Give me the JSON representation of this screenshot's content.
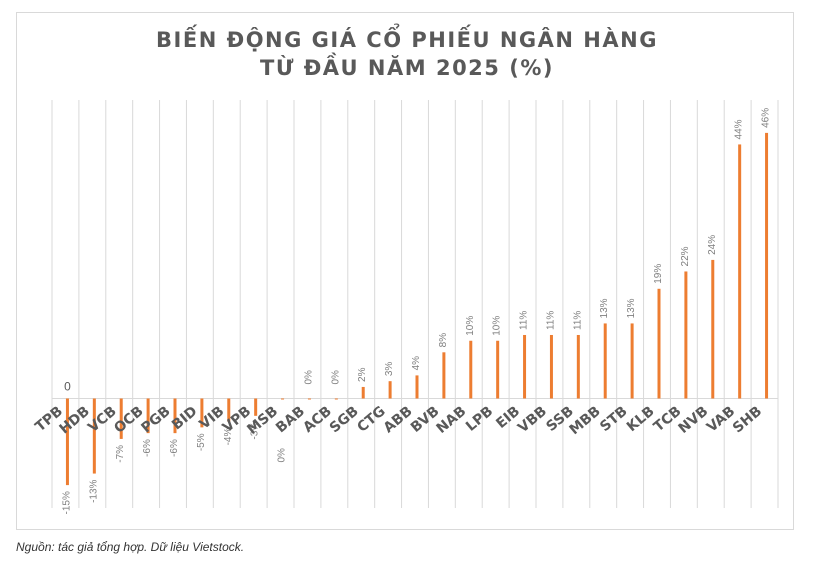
{
  "chart_data": {
    "type": "bar",
    "title_line1": "BIẾN ĐỘNG GIÁ CỔ PHIẾU NGÂN HÀNG",
    "title_line2": "TỪ ĐẦU NĂM 2025 (%)",
    "categories": [
      "TPB",
      "HDB",
      "VCB",
      "OCB",
      "PGB",
      "BID",
      "VIB",
      "VPB",
      "MSB",
      "BAB",
      "ACB",
      "SGB",
      "CTG",
      "ABB",
      "BVB",
      "NAB",
      "LPB",
      "EIB",
      "VBB",
      "SSB",
      "MBB",
      "STB",
      "KLB",
      "TCB",
      "NVB",
      "VAB",
      "SHB"
    ],
    "values": [
      -15,
      -13,
      -7,
      -6,
      -6,
      -5,
      -4,
      -3,
      0,
      0,
      0,
      2,
      3,
      4,
      8,
      10,
      10,
      11,
      11,
      11,
      13,
      13,
      19,
      22,
      24,
      44,
      46
    ],
    "data_labels": [
      "-15%",
      "-13%",
      "-7%",
      "-6%",
      "-6%",
      "-5%",
      "-4%",
      "-3%",
      "0%",
      "0%",
      "0%",
      "2%",
      "3%",
      "4%",
      "8%",
      "10%",
      "10%",
      "11%",
      "11%",
      "11%",
      "13%",
      "13%",
      "19%",
      "22%",
      "24%",
      "44%",
      "46%"
    ],
    "ylim": [
      -15.5,
      46.5
    ],
    "grid": "vertical",
    "bar_color": "#ED7D31",
    "gridline_color": "#d9d9d9",
    "axis_label_color": "#595959",
    "data_label_color": "#7f7f7f",
    "extra_label": "0"
  },
  "source_note": "Nguồn: tác giả tổng hợp. Dữ liệu Vietstock."
}
